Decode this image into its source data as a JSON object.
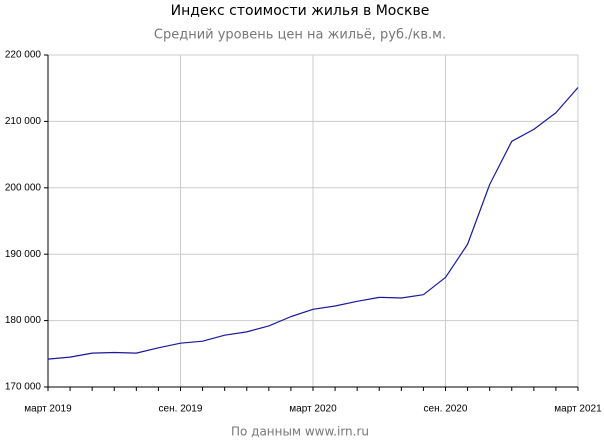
{
  "chart_data": {
    "type": "line",
    "title": "Индекс стоимости жилья в Москве",
    "subtitle": "Средний уровень цен на жильё, руб./кв.м.",
    "source": "По данным www.irn.ru",
    "x": [
      "2019-03",
      "2019-04",
      "2019-05",
      "2019-06",
      "2019-07",
      "2019-08",
      "2019-09",
      "2019-10",
      "2019-11",
      "2019-12",
      "2020-01",
      "2020-02",
      "2020-03",
      "2020-04",
      "2020-05",
      "2020-06",
      "2020-07",
      "2020-08",
      "2020-09",
      "2020-10",
      "2020-11",
      "2020-12",
      "2021-01",
      "2021-02",
      "2021-03"
    ],
    "series": [
      {
        "color": "#1a1a99",
        "values": [
          174200,
          174500,
          175100,
          175200,
          175100,
          175900,
          176600,
          176900,
          177800,
          178300,
          179200,
          180600,
          181700,
          182200,
          182900,
          183500,
          183400,
          183900,
          186500,
          191500,
          200500,
          207000,
          208800,
          211300,
          215100
        ]
      }
    ],
    "xlim": [
      "2019-03",
      "2021-03"
    ],
    "xticks": [
      {
        "value": "2019-03",
        "label": "март 2019"
      },
      {
        "value": "2019-09",
        "label": "сен. 2019"
      },
      {
        "value": "2020-03",
        "label": "март 2020"
      },
      {
        "value": "2020-09",
        "label": "сен. 2020"
      },
      {
        "value": "2021-03",
        "label": "март 2021"
      }
    ],
    "ylim": [
      170000,
      220000
    ],
    "yticks": [
      {
        "value": 170000,
        "label": "170 000"
      },
      {
        "value": 180000,
        "label": "180 000"
      },
      {
        "value": 190000,
        "label": "190 000"
      },
      {
        "value": 200000,
        "label": "200 000"
      },
      {
        "value": 210000,
        "label": "210 000"
      },
      {
        "value": 220000,
        "label": "220 000"
      }
    ],
    "grid": true
  }
}
